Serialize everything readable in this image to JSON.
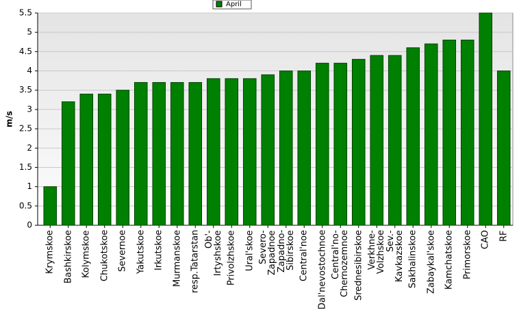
{
  "chart_data": {
    "type": "bar",
    "legend_label": "April",
    "y_label": "m/s",
    "categories": [
      "Krymskoe",
      "Bashkirskoe",
      "Kolymskoe",
      "Chukotskoe",
      "Severnoe",
      "Yakutskoe",
      "Irkutskoe",
      "Murmanskoe",
      "resp.Tatarstan",
      "Ob'-\nIrtyshskoe",
      "Privolzhskoe",
      "Ural'skoe",
      "Severo-\nZapadnoe",
      "Zapadno-\nSibirskoe",
      "Central'noe",
      "Dal'nevostochnoe",
      "Central'no-\nChernozemnoe",
      "Srednesibirskoe",
      "Verkhne-\nVolzhskoe",
      "Sev.-\nKavkazskoe",
      "Sakhalinskoe",
      "Zabaykal'skoe",
      "Kamchatskoe",
      "Primorskoe",
      "CAO",
      "RF"
    ],
    "values": [
      1.0,
      3.2,
      3.4,
      3.4,
      3.5,
      3.7,
      3.7,
      3.7,
      3.7,
      3.8,
      3.8,
      3.8,
      3.9,
      4.0,
      4.0,
      4.2,
      4.2,
      4.3,
      4.4,
      4.4,
      4.6,
      4.7,
      4.8,
      4.8,
      5.5,
      4.0
    ],
    "color": "#008000",
    "ylim": [
      0,
      5.5
    ],
    "yticks": [
      0,
      0.5,
      1,
      1.5,
      2,
      2.5,
      3,
      3.5,
      4,
      4.5,
      5,
      5.5
    ],
    "grid": true
  }
}
